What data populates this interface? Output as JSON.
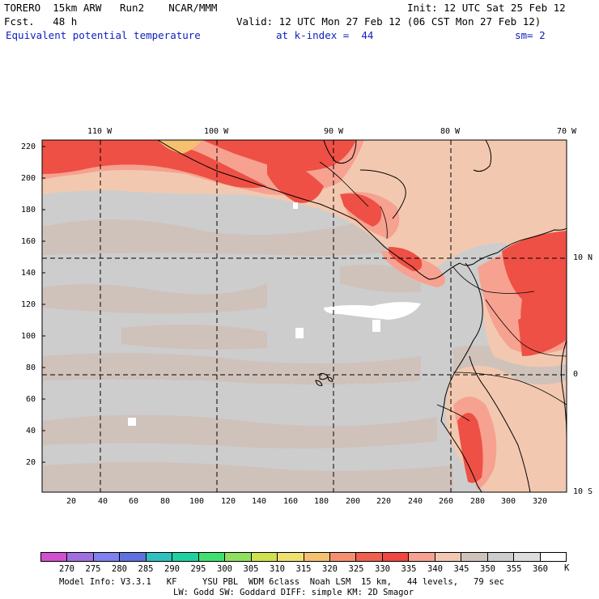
{
  "header": {
    "model": "TORERO  15km ARW   Run2    NCAR/MMM",
    "init": "Init: 12 UTC Sat 25 Feb 12",
    "fcst": "Fcst.   48 h",
    "valid": "Valid: 12 UTC Mon 27 Feb 12 (06 CST Mon 27 Feb 12)",
    "field": "Equivalent potential temperature",
    "level": "at k-index =  44",
    "smooth": "sm= 2"
  },
  "map": {
    "lon_labels": [
      "110 W",
      "100 W",
      "90 W",
      "80 W",
      "70 W"
    ],
    "lat_labels": [
      "10 N",
      "0",
      "10 S"
    ],
    "y_ticks": [
      "220",
      "200",
      "180",
      "160",
      "140",
      "120",
      "100",
      "80",
      "60",
      "40",
      "20"
    ],
    "x_ticks": [
      "20",
      "40",
      "60",
      "80",
      "100",
      "120",
      "140",
      "160",
      "180",
      "200",
      "220",
      "240",
      "260",
      "280",
      "300",
      "320"
    ],
    "colors": {
      "background": "#cdcdcd",
      "tan": "#cfc2bb",
      "peach": "#f2c9b0",
      "salmon": "#f7a190",
      "red": "#ee5045",
      "white": "#ffffff",
      "gridline": "#000000"
    }
  },
  "colorbar": {
    "labels": [
      "270",
      "275",
      "280",
      "285",
      "290",
      "295",
      "300",
      "305",
      "310",
      "315",
      "320",
      "325",
      "330",
      "335",
      "340",
      "345",
      "350",
      "355",
      "360"
    ],
    "unit": "K",
    "colors": [
      "#d050d0",
      "#a070e0",
      "#8080f0",
      "#6070e0",
      "#30c0c0",
      "#20d0a0",
      "#40e070",
      "#90e060",
      "#d0e050",
      "#f0e070",
      "#f5c070",
      "#f49070",
      "#f06050",
      "#ee4840",
      "#f7a190",
      "#f2c9b0",
      "#cfc2bb",
      "#cdcdcd",
      "#dddddd",
      "#ffffff"
    ]
  },
  "footer": {
    "line1": "Model Info: V3.3.1   KF     YSU PBL  WDM 6class  Noah LSM  15 km,   44 levels,   79 sec",
    "line2": "LW: Godd SW: Goddard DIFF: simple KM: 2D Smagor"
  }
}
